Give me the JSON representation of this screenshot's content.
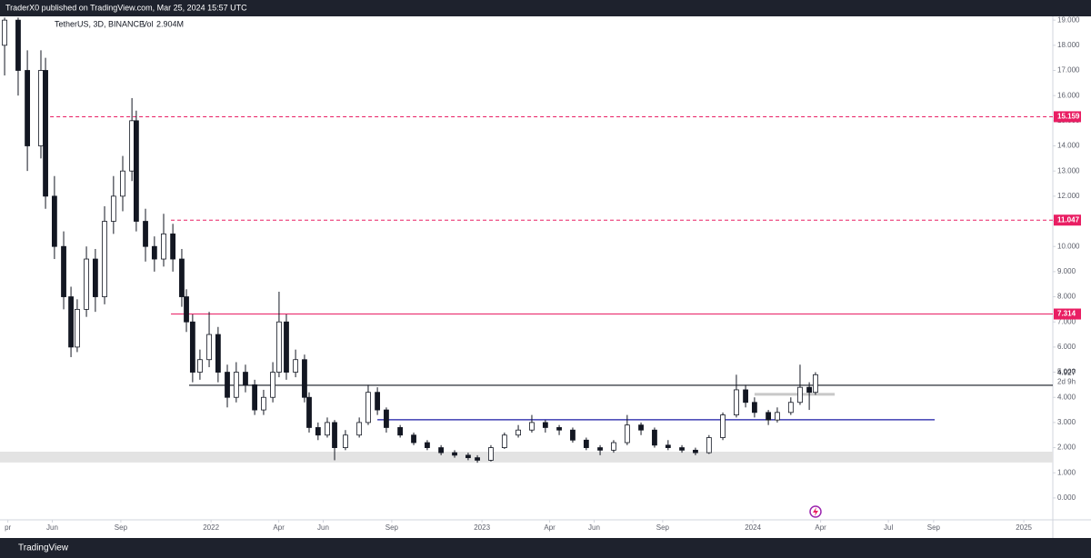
{
  "header": "TraderX0 published on TradingView.com, Mar 25, 2024 15:57 UTC",
  "footer": "TradingView",
  "chart_data": {
    "type": "candlestick",
    "symbol": "TetherUS, 3D, BINANCE",
    "volume_label": "Vol",
    "volume": "2.904M",
    "x": [
      2021.238,
      2021.288,
      2021.322,
      2021.372,
      2021.389,
      2021.422,
      2021.456,
      2021.483,
      2021.506,
      2021.54,
      2021.573,
      2021.607,
      2021.64,
      2021.674,
      2021.708,
      2021.724,
      2021.758,
      2021.791,
      2021.825,
      2021.859,
      2021.892,
      2021.909,
      2021.932,
      2021.959,
      2021.993,
      2022.026,
      2022.06,
      2022.093,
      2022.127,
      2022.161,
      2022.194,
      2022.228,
      2022.251,
      2022.278,
      2022.312,
      2022.345,
      2022.362,
      2022.395,
      2022.429,
      2022.456,
      2022.496,
      2022.547,
      2022.58,
      2022.614,
      2022.647,
      2022.698,
      2022.748,
      2022.798,
      2022.849,
      2022.899,
      2022.949,
      2022.983,
      2023.033,
      2023.083,
      2023.134,
      2023.184,
      2023.234,
      2023.285,
      2023.335,
      2023.385,
      2023.436,
      2023.486,
      2023.536,
      2023.587,
      2023.637,
      2023.687,
      2023.738,
      2023.788,
      2023.838,
      2023.889,
      2023.939,
      2023.973,
      2024.006,
      2024.057,
      2024.09,
      2024.14,
      2024.174,
      2024.208,
      2024.231
    ],
    "open": [
      18,
      19,
      17,
      14,
      17,
      12,
      10,
      8,
      6,
      7.5,
      9.5,
      8,
      11,
      12,
      13,
      15,
      11,
      10,
      9.5,
      10.5,
      9.5,
      8,
      7,
      5,
      5.5,
      6.5,
      5,
      4,
      5,
      4.5,
      3.5,
      4,
      5,
      7,
      5,
      5.5,
      4,
      2.8,
      2.5,
      3,
      2,
      2.5,
      3,
      4.2,
      3.5,
      2.8,
      2.5,
      2.2,
      2.0,
      1.8,
      1.7,
      1.6,
      1.5,
      2.0,
      2.5,
      2.7,
      3.0,
      2.8,
      2.7,
      2.3,
      2.0,
      1.9,
      2.2,
      2.9,
      2.7,
      2.1,
      2.0,
      1.9,
      1.8,
      2.4,
      3.3,
      4.3,
      3.8,
      3.4,
      3.1,
      3.4,
      3.8,
      4.4,
      4.2
    ],
    "high": [
      19.1,
      19.1,
      17.8,
      17.8,
      17.5,
      12.8,
      10.6,
      8.4,
      7.9,
      10.0,
      9.9,
      11.6,
      12.8,
      13.6,
      15.9,
      15.4,
      11.5,
      10.4,
      11.3,
      10.9,
      9.9,
      8.3,
      7.3,
      5.9,
      7.4,
      6.8,
      5.3,
      5.4,
      5.3,
      4.7,
      4.3,
      5.4,
      8.2,
      7.3,
      5.9,
      5.7,
      4.2,
      3.0,
      3.2,
      3.1,
      2.7,
      3.2,
      4.5,
      4.4,
      3.6,
      2.9,
      2.6,
      2.3,
      2.1,
      1.9,
      1.8,
      1.7,
      2.1,
      2.6,
      2.9,
      3.3,
      3.1,
      2.9,
      2.8,
      2.4,
      2.1,
      2.3,
      3.3,
      3.0,
      2.8,
      2.3,
      2.1,
      2.0,
      2.5,
      3.4,
      4.9,
      4.5,
      4.0,
      3.5,
      3.6,
      4.0,
      5.3,
      4.6,
      5.0
    ],
    "low": [
      16.8,
      16.0,
      13.0,
      13.5,
      11.5,
      9.5,
      7.5,
      5.6,
      5.8,
      7.2,
      7.4,
      7.7,
      10.5,
      11.4,
      12.6,
      10.6,
      9.4,
      9.0,
      9.2,
      9.0,
      7.6,
      6.6,
      4.6,
      4.7,
      5.2,
      4.6,
      3.6,
      3.8,
      4.2,
      3.3,
      3.3,
      3.8,
      4.8,
      4.7,
      4.8,
      3.8,
      2.6,
      2.3,
      2.4,
      1.5,
      1.9,
      2.4,
      2.9,
      3.3,
      2.6,
      2.4,
      2.1,
      1.9,
      1.7,
      1.6,
      1.5,
      1.4,
      1.45,
      1.95,
      2.4,
      2.6,
      2.6,
      2.5,
      2.2,
      1.9,
      1.7,
      1.8,
      2.1,
      2.5,
      2.0,
      1.9,
      1.8,
      1.7,
      1.75,
      2.3,
      3.2,
      3.6,
      3.2,
      2.9,
      3.0,
      3.3,
      3.7,
      3.5,
      4.1
    ],
    "close": [
      19,
      17,
      14,
      17,
      12,
      10,
      8,
      6,
      7.5,
      9.5,
      8,
      11,
      12,
      13,
      15,
      11,
      10,
      9.5,
      10.5,
      9.5,
      8,
      7,
      5,
      5.5,
      6.5,
      5,
      4,
      5,
      4.5,
      3.5,
      4,
      5,
      7,
      5,
      5.5,
      4,
      2.8,
      2.5,
      3,
      2,
      2.5,
      3,
      4.2,
      3.5,
      2.8,
      2.5,
      2.2,
      2.0,
      1.8,
      1.7,
      1.6,
      1.5,
      2.0,
      2.5,
      2.7,
      3.0,
      2.8,
      2.7,
      2.3,
      2.0,
      1.9,
      2.2,
      2.9,
      2.7,
      2.1,
      2.0,
      1.9,
      1.8,
      2.4,
      3.3,
      4.3,
      3.8,
      3.4,
      3.1,
      3.4,
      3.8,
      4.4,
      4.2,
      4.9
    ],
    "color": "#131722",
    "xlim": [
      2021.221,
      2025.107
    ],
    "ylim": [
      -0.87,
      19.15
    ],
    "xticks": [
      {
        "value": 2021.25,
        "label": "pr"
      },
      {
        "value": 2021.414,
        "label": "Jun"
      },
      {
        "value": 2021.667,
        "label": "Sep"
      },
      {
        "value": 2022.0,
        "label": "2022"
      },
      {
        "value": 2022.25,
        "label": "Apr"
      },
      {
        "value": 2022.414,
        "label": "Jun"
      },
      {
        "value": 2022.667,
        "label": "Sep"
      },
      {
        "value": 2023.0,
        "label": "2023"
      },
      {
        "value": 2023.25,
        "label": "Apr"
      },
      {
        "value": 2023.414,
        "label": "Jun"
      },
      {
        "value": 2023.667,
        "label": "Sep"
      },
      {
        "value": 2024.0,
        "label": "2024"
      },
      {
        "value": 2024.25,
        "label": "Apr"
      },
      {
        "value": 2024.5,
        "label": "Jul"
      },
      {
        "value": 2024.667,
        "label": "Sep"
      },
      {
        "value": 2025.0,
        "label": "2025"
      }
    ],
    "yticks": [
      {
        "value": 0,
        "label": "0.000"
      },
      {
        "value": 1,
        "label": "1.000"
      },
      {
        "value": 2,
        "label": "2.000"
      },
      {
        "value": 3,
        "label": "3.000"
      },
      {
        "value": 4,
        "label": "4.000"
      },
      {
        "value": 5,
        "label": "5.000"
      },
      {
        "value": 6,
        "label": "6.000"
      },
      {
        "value": 7,
        "label": "7.000"
      },
      {
        "value": 8,
        "label": "8.000"
      },
      {
        "value": 9,
        "label": "9.000"
      },
      {
        "value": 10,
        "label": "10.000"
      },
      {
        "value": 11,
        "label": "11.000"
      },
      {
        "value": 12,
        "label": "12.000"
      },
      {
        "value": 13,
        "label": "13.000"
      },
      {
        "value": 14,
        "label": "14.000"
      },
      {
        "value": 15,
        "label": "15.000"
      },
      {
        "value": 16,
        "label": "16.000"
      },
      {
        "value": 17,
        "label": "17.000"
      },
      {
        "value": 18,
        "label": "18.000"
      },
      {
        "value": 19,
        "label": "19.000"
      }
    ],
    "labeled_levels": [
      {
        "value": 15.159,
        "start": 2021.406,
        "color": "#e91e63",
        "dash": true
      },
      {
        "value": 11.047,
        "start": 2021.852,
        "color": "#e91e63",
        "dash": true
      },
      {
        "value": 7.314,
        "start": 2021.852,
        "color": "#e91e63",
        "dash": false
      }
    ],
    "levels": [
      {
        "value": 4.48,
        "start": 2021.919,
        "color": "#131722"
      },
      {
        "value": 3.11,
        "start": 2022.614,
        "end": 2024.671,
        "color": "#1a1aa6"
      },
      {
        "value": 4.12,
        "start": 2024.006,
        "end": 2024.302,
        "color": "#c8c8c8"
      }
    ],
    "zones": [
      {
        "low": 1.41,
        "high": 1.84,
        "color": "#e3e3e3"
      }
    ],
    "current_price": 4.927,
    "countdown": "2d 9h"
  }
}
